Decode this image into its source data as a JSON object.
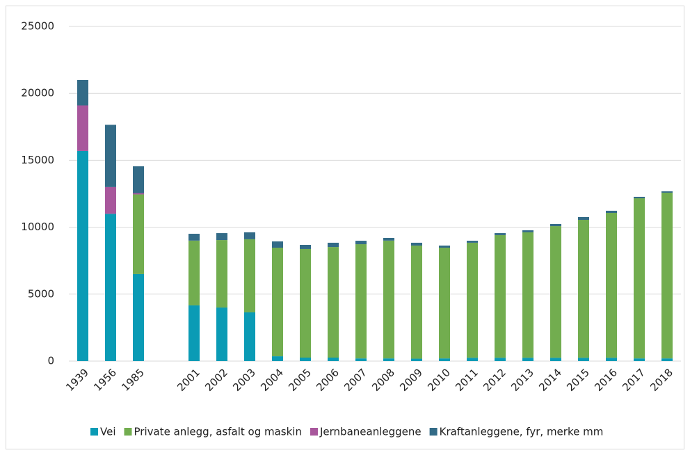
{
  "chart_data": {
    "type": "stacked_bar",
    "categories": [
      "1939",
      "1956",
      "1985",
      null,
      "2001",
      "2002",
      "2003",
      "2004",
      "2005",
      "2006",
      "2007",
      "2008",
      "2009",
      "2010",
      "2011",
      "2012",
      "2013",
      "2014",
      "2015",
      "2016",
      "2017",
      "2018"
    ],
    "series": [
      {
        "name": "Vei",
        "color": "#0a9bb5",
        "values": [
          15700,
          11000,
          6500,
          null,
          4160,
          4000,
          3640,
          360,
          260,
          260,
          200,
          200,
          180,
          200,
          250,
          250,
          250,
          250,
          250,
          250,
          200,
          200
        ]
      },
      {
        "name": "Private anlegg, asfalt og maskin",
        "color": "#72ad4f",
        "values": [
          0,
          0,
          5950,
          null,
          4840,
          5040,
          5460,
          8110,
          8110,
          8260,
          8530,
          8800,
          8450,
          8270,
          8590,
          9160,
          9370,
          9830,
          10300,
          10820,
          11960,
          12380
        ]
      },
      {
        "name": "Jernbaneanleggene",
        "color": "#a8579c",
        "values": [
          3400,
          2000,
          100,
          null,
          0,
          0,
          0,
          0,
          0,
          0,
          0,
          0,
          0,
          0,
          0,
          0,
          0,
          0,
          0,
          0,
          0,
          0
        ]
      },
      {
        "name": "Kraftanleggene, fyr, merke mm",
        "color": "#336b87",
        "values": [
          1900,
          4650,
          2000,
          null,
          510,
          520,
          520,
          470,
          310,
          320,
          260,
          200,
          210,
          160,
          150,
          150,
          150,
          160,
          210,
          160,
          110,
          100
        ]
      }
    ],
    "ylim": [
      0,
      25000
    ],
    "yticks": [
      0,
      5000,
      10000,
      15000,
      20000,
      25000
    ],
    "grid": true,
    "legend": "bottom"
  }
}
